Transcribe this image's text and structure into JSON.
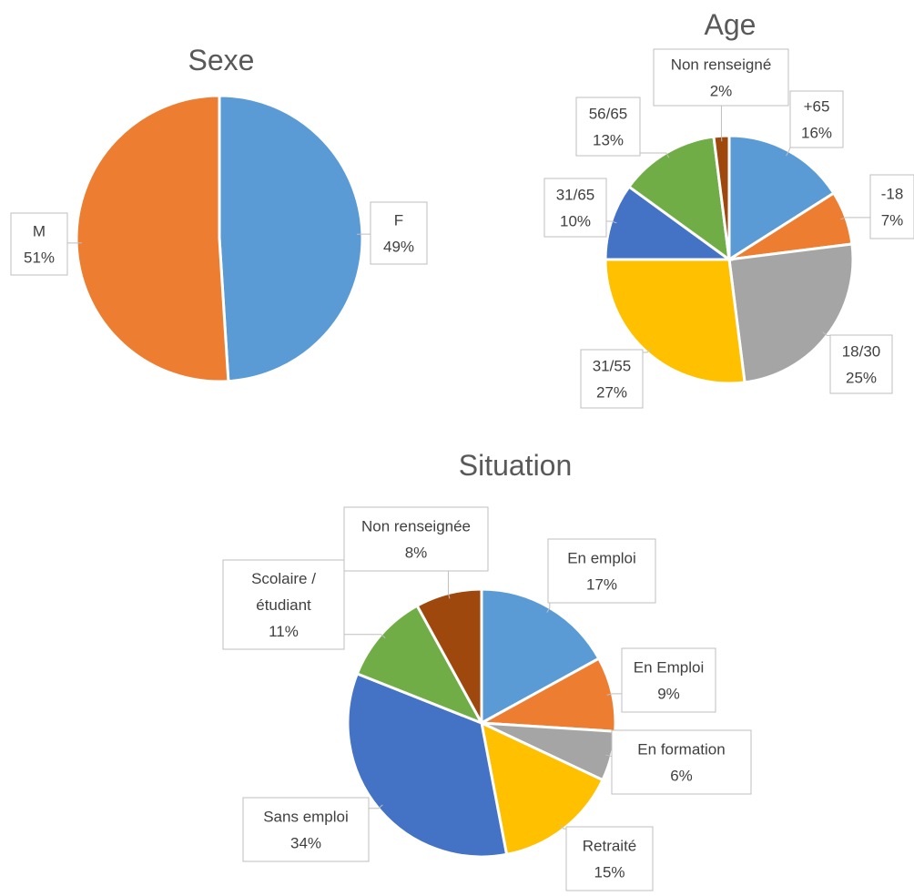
{
  "chart_data": [
    {
      "type": "pie",
      "title": "Sexe",
      "slices": [
        {
          "label": "F",
          "value": 49,
          "pct_label": "49%",
          "color": "#5B9BD5"
        },
        {
          "label": "M",
          "value": 51,
          "pct_label": "51%",
          "color": "#ED7D31"
        }
      ]
    },
    {
      "type": "pie",
      "title": "Age",
      "slices": [
        {
          "label": "+65",
          "value": 16,
          "pct_label": "16%",
          "color": "#5B9BD5"
        },
        {
          "label": "-18",
          "value": 7,
          "pct_label": "7%",
          "color": "#ED7D31"
        },
        {
          "label": "18/30",
          "value": 25,
          "pct_label": "25%",
          "color": "#A5A5A5"
        },
        {
          "label": "31/55",
          "value": 27,
          "pct_label": "27%",
          "color": "#FFC000"
        },
        {
          "label": "31/65",
          "value": 10,
          "pct_label": "10%",
          "color": "#4472C4"
        },
        {
          "label": "56/65",
          "value": 13,
          "pct_label": "13%",
          "color": "#70AD47"
        },
        {
          "label": "Non renseigné",
          "value": 2,
          "pct_label": "2%",
          "color": "#9E480E"
        }
      ]
    },
    {
      "type": "pie",
      "title": "Situation",
      "slices": [
        {
          "label": "En emploi",
          "value": 17,
          "pct_label": "17%",
          "color": "#5B9BD5"
        },
        {
          "label": "En Emploi",
          "value": 9,
          "pct_label": "9%",
          "color": "#ED7D31"
        },
        {
          "label": "En formation",
          "value": 6,
          "pct_label": "6%",
          "color": "#A5A5A5"
        },
        {
          "label": "Retraité",
          "value": 15,
          "pct_label": "15%",
          "color": "#FFC000"
        },
        {
          "label": "Sans emploi",
          "value": 34,
          "pct_label": "34%",
          "color": "#4472C4"
        },
        {
          "label": "Scolaire /\nétudiant",
          "value": 11,
          "pct_label": "11%",
          "color": "#70AD47"
        },
        {
          "label": "Non renseignée",
          "value": 8,
          "pct_label": "8%",
          "color": "#9E480E"
        }
      ]
    }
  ]
}
